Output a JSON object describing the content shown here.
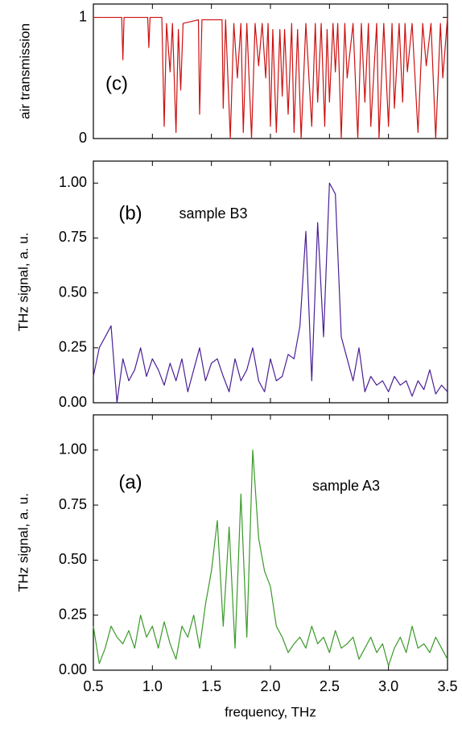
{
  "chart_data": [
    {
      "type": "line",
      "panel_label": "(c)",
      "ylabel": "air transmission",
      "x": [
        0.5,
        0.74,
        0.75,
        0.76,
        0.96,
        0.97,
        0.98,
        1.08,
        1.1,
        1.12,
        1.15,
        1.17,
        1.2,
        1.22,
        1.24,
        1.26,
        1.39,
        1.4,
        1.42,
        1.59,
        1.6,
        1.62,
        1.66,
        1.69,
        1.72,
        1.75,
        1.77,
        1.8,
        1.84,
        1.87,
        1.9,
        1.93,
        1.96,
        1.98,
        2.0,
        2.02,
        2.05,
        2.08,
        2.1,
        2.12,
        2.15,
        2.18,
        2.2,
        2.23,
        2.26,
        2.3,
        2.35,
        2.38,
        2.4,
        2.43,
        2.46,
        2.48,
        2.5,
        2.53,
        2.55,
        2.57,
        2.6,
        2.63,
        2.65,
        2.7,
        2.74,
        2.77,
        2.8,
        2.83,
        2.85,
        2.9,
        2.92,
        2.96,
        3.0,
        3.03,
        3.05,
        3.09,
        3.12,
        3.14,
        3.16,
        3.2,
        3.25,
        3.29,
        3.32,
        3.36,
        3.4,
        3.44,
        3.46,
        3.5
      ],
      "series": [
        {
          "color": "#cc1111",
          "values": [
            1,
            1,
            0.65,
            1,
            1,
            0.75,
            1,
            1,
            0.1,
            0.95,
            0.55,
            0.95,
            0.05,
            0.9,
            0.4,
            0.95,
            0.98,
            0.2,
            0.98,
            0.98,
            0.25,
            0.98,
            0,
            0.95,
            0.5,
            0.95,
            0.05,
            0.95,
            0,
            0.95,
            0.6,
            0.95,
            0.5,
            0.95,
            0.1,
            0.9,
            0.05,
            0.9,
            0.35,
            0.9,
            0.2,
            0.95,
            0.05,
            0.9,
            0,
            0.95,
            0.1,
            0.95,
            0.3,
            0.95,
            0.1,
            0.9,
            0.3,
            0.95,
            0.55,
            0.95,
            0,
            0.95,
            0.5,
            0.95,
            0,
            0.95,
            0.3,
            0.95,
            0.1,
            0.95,
            0,
            0.95,
            0.1,
            0.95,
            0.25,
            0.95,
            0.3,
            0.95,
            0.55,
            0.95,
            0.05,
            0.95,
            0.6,
            0.95,
            0,
            0.95,
            0.5,
            1
          ]
        }
      ],
      "xlim": [
        0.5,
        3.5
      ],
      "xticks": [
        0.5,
        1,
        1.5,
        2,
        2.5,
        3,
        3.5
      ],
      "ylim": [
        0,
        1.11
      ],
      "yticks": [
        0,
        1
      ]
    },
    {
      "type": "line",
      "panel_label": "(b)",
      "annotation": "sample B3",
      "ylabel": "THz signal, a. u.",
      "x": [
        0.5,
        0.55,
        0.6,
        0.65,
        0.7,
        0.75,
        0.8,
        0.85,
        0.9,
        0.95,
        1.0,
        1.05,
        1.1,
        1.15,
        1.2,
        1.25,
        1.3,
        1.35,
        1.4,
        1.45,
        1.5,
        1.55,
        1.6,
        1.65,
        1.7,
        1.75,
        1.8,
        1.85,
        1.9,
        1.95,
        2.0,
        2.05,
        2.1,
        2.15,
        2.2,
        2.25,
        2.3,
        2.35,
        2.4,
        2.45,
        2.5,
        2.55,
        2.6,
        2.65,
        2.7,
        2.75,
        2.8,
        2.85,
        2.9,
        2.95,
        3.0,
        3.05,
        3.1,
        3.15,
        3.2,
        3.25,
        3.3,
        3.35,
        3.4,
        3.45,
        3.5
      ],
      "series": [
        {
          "color": "#4a1f96",
          "values": [
            0.12,
            0.25,
            0.3,
            0.35,
            0.0,
            0.2,
            0.1,
            0.15,
            0.25,
            0.12,
            0.2,
            0.15,
            0.08,
            0.18,
            0.1,
            0.2,
            0.05,
            0.15,
            0.25,
            0.1,
            0.18,
            0.2,
            0.12,
            0.05,
            0.2,
            0.1,
            0.15,
            0.25,
            0.1,
            0.05,
            0.2,
            0.1,
            0.12,
            0.22,
            0.2,
            0.35,
            0.78,
            0.1,
            0.82,
            0.3,
            1.0,
            0.95,
            0.3,
            0.2,
            0.1,
            0.25,
            0.05,
            0.12,
            0.08,
            0.1,
            0.05,
            0.12,
            0.08,
            0.1,
            0.03,
            0.1,
            0.06,
            0.15,
            0.04,
            0.08,
            0.05
          ]
        }
      ],
      "xlim": [
        0.5,
        3.5
      ],
      "xticks": [
        0.5,
        1,
        1.5,
        2,
        2.5,
        3,
        3.5
      ],
      "ylim": [
        0,
        1.1
      ],
      "yticks": [
        {
          "value": 0,
          "label": "0.00"
        },
        0.25,
        {
          "value": 0.5,
          "label": "0.50"
        },
        0.75,
        {
          "value": 1,
          "label": "1.00"
        }
      ]
    },
    {
      "type": "line",
      "panel_label": "(a)",
      "annotation": "sample A3",
      "ylabel": "THz signal, a. u.",
      "xlabel": "frequency, THz",
      "x": [
        0.5,
        0.55,
        0.6,
        0.65,
        0.7,
        0.75,
        0.8,
        0.85,
        0.9,
        0.95,
        1.0,
        1.05,
        1.1,
        1.15,
        1.2,
        1.25,
        1.3,
        1.35,
        1.4,
        1.45,
        1.5,
        1.55,
        1.6,
        1.65,
        1.7,
        1.75,
        1.8,
        1.85,
        1.9,
        1.95,
        2.0,
        2.05,
        2.1,
        2.15,
        2.2,
        2.25,
        2.3,
        2.35,
        2.4,
        2.45,
        2.5,
        2.55,
        2.6,
        2.65,
        2.7,
        2.75,
        2.8,
        2.85,
        2.9,
        2.95,
        3.0,
        3.05,
        3.1,
        3.15,
        3.2,
        3.25,
        3.3,
        3.35,
        3.4,
        3.45,
        3.5
      ],
      "series": [
        {
          "color": "#3a9a28",
          "values": [
            0.2,
            0.03,
            0.1,
            0.2,
            0.15,
            0.12,
            0.18,
            0.1,
            0.25,
            0.15,
            0.2,
            0.1,
            0.22,
            0.12,
            0.05,
            0.2,
            0.15,
            0.25,
            0.1,
            0.3,
            0.45,
            0.68,
            0.2,
            0.65,
            0.1,
            0.8,
            0.15,
            1.0,
            0.6,
            0.45,
            0.38,
            0.2,
            0.15,
            0.08,
            0.12,
            0.15,
            0.1,
            0.2,
            0.12,
            0.15,
            0.08,
            0.18,
            0.1,
            0.12,
            0.15,
            0.05,
            0.1,
            0.15,
            0.08,
            0.12,
            0.02,
            0.1,
            0.15,
            0.08,
            0.2,
            0.1,
            0.12,
            0.08,
            0.15,
            0.1,
            0.05
          ]
        }
      ],
      "xlim": [
        0.5,
        3.5
      ],
      "xticks": [
        {
          "value": 0.5,
          "label": "0.5"
        },
        {
          "value": 1,
          "label": "1.0"
        },
        {
          "value": 1.5,
          "label": "1.5"
        },
        {
          "value": 2,
          "label": "2.0"
        },
        {
          "value": 2.5,
          "label": "2.5"
        },
        {
          "value": 3,
          "label": "3.0"
        },
        {
          "value": 3.5,
          "label": "3.5"
        }
      ],
      "ylim": [
        0,
        1.16
      ],
      "yticks": [
        {
          "value": 0,
          "label": "0.00"
        },
        0.25,
        {
          "value": 0.5,
          "label": "0.50"
        },
        0.75,
        {
          "value": 1,
          "label": "1.00"
        }
      ]
    }
  ]
}
